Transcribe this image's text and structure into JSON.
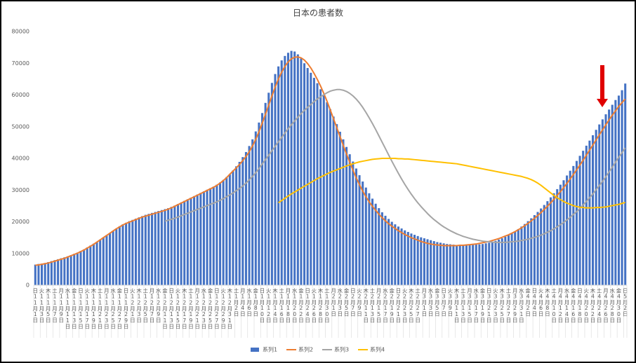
{
  "chart_data": {
    "type": "bar",
    "title": "日本の患者数",
    "categories": [
      "日11月1日",
      null,
      "火11月3日",
      null,
      "木11月5日",
      null,
      "土11月7日",
      null,
      "月11月9日",
      null,
      "水11月11日",
      null,
      "金11月13日",
      null,
      "日11月15日",
      null,
      "火11月17日",
      null,
      "木11月19日",
      null,
      "土11月21日",
      null,
      "月11月23日",
      null,
      "水11月25日",
      null,
      "金11月27日",
      null,
      "日11月29日",
      null,
      "火12月1日",
      null,
      "木12月3日",
      null,
      "土12月5日",
      null,
      "月12月7日",
      null,
      "水12月9日",
      null,
      "金12月11日",
      null,
      "日12月13日",
      null,
      "火12月15日",
      null,
      "木12月17日",
      null,
      "土12月19日",
      null,
      "月12月21日",
      null,
      "水12月23日",
      null,
      "金12月25日",
      null,
      "日12月27日",
      null,
      "火12月29日",
      null,
      "木12月31日",
      null,
      "土1月2日",
      null,
      "月1月4日",
      null,
      "水1月6日",
      null,
      "金1月8日",
      null,
      "日1月10日",
      null,
      "火1月12日",
      null,
      "木1月14日",
      null,
      "土1月16日",
      null,
      "月1月18日",
      null,
      "水1月20日",
      null,
      "金1月22日",
      null,
      "日1月24日",
      null,
      "火1月26日",
      null,
      "木1月28日",
      null,
      "土1月30日",
      null,
      "月2月1日",
      null,
      "水2月3日",
      null,
      "金2月5日",
      null,
      "日2月7日",
      null,
      "火2月9日",
      null,
      "木2月11日",
      null,
      "土2月13日",
      null,
      "月2月15日",
      null,
      "水2月17日",
      null,
      "金2月19日",
      null,
      "日2月21日",
      null,
      "火2月23日",
      null,
      "木2月25日",
      null,
      "土2月27日",
      null,
      "月3月1日",
      null,
      "水3月3日",
      null,
      "金3月5日",
      null,
      "日3月7日",
      null,
      "火3月9日",
      null,
      "木3月11日",
      null,
      "土3月13日",
      null,
      "月3月15日",
      null,
      "水3月17日",
      null,
      "金3月19日",
      null,
      "日3月21日",
      null,
      "火3月23日",
      null,
      "木3月25日",
      null,
      "土3月27日",
      null,
      "月3月29日",
      null,
      "水3月31日",
      null,
      "金4月2日",
      null,
      "日4月4日",
      null,
      "火4月6日",
      null,
      "木4月8日",
      null,
      "土4月10日",
      null,
      "月4月12日",
      null,
      "水4月14日",
      null,
      "金4月16日",
      null,
      "日4月18日",
      null,
      "火4月20日",
      null,
      "木4月22日",
      null,
      "土4月24日",
      null,
      "月4月26日",
      null,
      "水4月28日",
      null,
      "金4月30日",
      null,
      "日5月2日"
    ],
    "series": [
      {
        "name": "系列1",
        "type": "bar",
        "color": "#4472c4",
        "values": [
          6500,
          6700,
          6800,
          7000,
          7300,
          7600,
          7900,
          8200,
          8500,
          8800,
          9100,
          9500,
          9900,
          10300,
          10800,
          11300,
          11900,
          12500,
          13100,
          13700,
          14400,
          15100,
          15800,
          16500,
          17200,
          17900,
          18600,
          19200,
          19700,
          20200,
          20600,
          21000,
          21400,
          21800,
          22200,
          22500,
          22800,
          23100,
          23400,
          23700,
          24000,
          24300,
          24700,
          25100,
          25600,
          26100,
          26600,
          27100,
          27600,
          28100,
          28600,
          29100,
          29600,
          30100,
          30600,
          31100,
          31700,
          32400,
          33200,
          34100,
          35000,
          36200,
          37500,
          38900,
          40400,
          42000,
          43900,
          46000,
          48500,
          51300,
          54300,
          57500,
          60700,
          63800,
          66600,
          69000,
          70900,
          72300,
          73300,
          73900,
          73700,
          72800,
          71500,
          70000,
          68500,
          67000,
          65400,
          63700,
          61800,
          59800,
          57700,
          55500,
          53200,
          50800,
          48400,
          46000,
          43600,
          41300,
          39000,
          36800,
          34700,
          32700,
          30800,
          29000,
          27300,
          25700,
          24300,
          23000,
          21900,
          20900,
          20000,
          19200,
          18500,
          17900,
          17300,
          16800,
          16300,
          15900,
          15500,
          15100,
          14800,
          14500,
          14200,
          13900,
          13600,
          13400,
          13200,
          13000,
          12900,
          12800,
          12700,
          12600,
          12600,
          12600,
          12600,
          12700,
          12800,
          12900,
          13000,
          13200,
          13400,
          13700,
          14000,
          14400,
          14800,
          15300,
          15800,
          16400,
          17000,
          17700,
          18500,
          19300,
          20200,
          21100,
          22100,
          23100,
          24200,
          25300,
          26500,
          27700,
          29000,
          30300,
          31700,
          33100,
          34600,
          36100,
          37600,
          39200,
          40800,
          42400,
          44000,
          45600,
          47300,
          49000,
          50700,
          52300,
          53900,
          55400,
          56900,
          58400,
          59800,
          61500,
          63600
        ]
      },
      {
        "name": "系列2",
        "type": "line",
        "color": "#ed7d31",
        "values": [
          6300,
          6400,
          6600,
          6800,
          7000,
          7300,
          7600,
          7900,
          8200,
          8500,
          8900,
          9300,
          9700,
          10100,
          10600,
          11100,
          11700,
          12300,
          12900,
          13600,
          14300,
          15000,
          15700,
          16400,
          17100,
          17800,
          18400,
          19000,
          19500,
          19900,
          20300,
          20700,
          21100,
          21500,
          21800,
          22100,
          22400,
          22700,
          23000,
          23300,
          23600,
          24000,
          24400,
          24900,
          25400,
          25900,
          26400,
          26900,
          27400,
          27900,
          28400,
          28900,
          29400,
          29900,
          30400,
          30900,
          31500,
          32200,
          33000,
          33900,
          35000,
          36000,
          37000,
          38100,
          39300,
          40600,
          42100,
          43900,
          46000,
          48400,
          51100,
          53900,
          56800,
          59700,
          62500,
          65000,
          67200,
          69000,
          70400,
          71400,
          71900,
          72000,
          71700,
          71000,
          69900,
          68500,
          66800,
          64900,
          62800,
          60500,
          58000,
          55300,
          52500,
          49700,
          46900,
          44100,
          41400,
          38800,
          36300,
          33900,
          31700,
          29700,
          27900,
          26300,
          24900,
          23600,
          22400,
          21300,
          20300,
          19400,
          18600,
          17900,
          17200,
          16600,
          16000,
          15500,
          15000,
          14600,
          14200,
          13800,
          13500,
          13200,
          13000,
          12800,
          12700,
          12600,
          12500,
          12500,
          12500,
          12500,
          12500,
          12600,
          12600,
          12700,
          12800,
          12900,
          13000,
          13200,
          13400,
          13600,
          13800,
          14100,
          14400,
          14700,
          15100,
          15500,
          15900,
          16400,
          16900,
          17500,
          18100,
          18800,
          19500,
          20300,
          21100,
          22000,
          22900,
          23900,
          24900,
          26000,
          27100,
          28300,
          29500,
          30800,
          32100,
          33500,
          34900,
          36400,
          37900,
          39400,
          41000,
          42600,
          44200,
          45800,
          47400,
          49000,
          50600,
          52100,
          53600,
          55000,
          56400,
          57600,
          58700
        ]
      },
      {
        "name": "系列3",
        "type": "line",
        "color": "#a5a5a5",
        "values": [
          null,
          null,
          null,
          null,
          null,
          null,
          null,
          null,
          null,
          null,
          null,
          null,
          null,
          null,
          null,
          null,
          null,
          null,
          null,
          null,
          null,
          null,
          null,
          null,
          null,
          null,
          null,
          null,
          null,
          null,
          null,
          null,
          null,
          null,
          null,
          null,
          null,
          null,
          null,
          null,
          20200,
          20500,
          20800,
          21100,
          21500,
          21900,
          22300,
          22700,
          23100,
          23500,
          23900,
          24300,
          24700,
          25100,
          25500,
          25900,
          26300,
          26800,
          27300,
          27900,
          28500,
          29100,
          29800,
          30500,
          31300,
          32200,
          33200,
          34300,
          35500,
          36800,
          38200,
          39600,
          41000,
          42400,
          43800,
          45200,
          46600,
          48000,
          49300,
          50600,
          51800,
          53000,
          54100,
          55100,
          56100,
          57000,
          57900,
          58700,
          59400,
          60100,
          60700,
          61200,
          61500,
          61700,
          61700,
          61500,
          61100,
          60500,
          59700,
          58700,
          57500,
          56100,
          54500,
          52800,
          51000,
          49100,
          47100,
          45100,
          43100,
          41100,
          39100,
          37200,
          35300,
          33500,
          31800,
          30200,
          28700,
          27300,
          26000,
          24800,
          23700,
          22600,
          21600,
          20700,
          19900,
          19100,
          18400,
          17800,
          17200,
          16700,
          16200,
          15800,
          15400,
          15100,
          14800,
          14500,
          14300,
          14100,
          13900,
          13800,
          13700,
          13600,
          13500,
          13500,
          13500,
          13500,
          13600,
          13700,
          13800,
          13900,
          14100,
          14300,
          14500,
          14800,
          15100,
          15400,
          15800,
          16200,
          16700,
          17200,
          17800,
          18400,
          19100,
          19800,
          20600,
          21400,
          22300,
          23200,
          24200,
          25300,
          26400,
          27600,
          28800,
          30100,
          31400,
          32800,
          34200,
          35700,
          37200,
          38800,
          40400,
          41800,
          43300
        ]
      },
      {
        "name": "系列4",
        "type": "line",
        "color": "#ffc000",
        "values": [
          null,
          null,
          null,
          null,
          null,
          null,
          null,
          null,
          null,
          null,
          null,
          null,
          null,
          null,
          null,
          null,
          null,
          null,
          null,
          null,
          null,
          null,
          null,
          null,
          null,
          null,
          null,
          null,
          null,
          null,
          null,
          null,
          null,
          null,
          null,
          null,
          null,
          null,
          null,
          null,
          null,
          null,
          null,
          null,
          null,
          null,
          null,
          null,
          null,
          null,
          null,
          null,
          null,
          null,
          null,
          null,
          null,
          null,
          null,
          null,
          null,
          null,
          null,
          null,
          null,
          null,
          null,
          null,
          null,
          null,
          null,
          null,
          null,
          null,
          null,
          26000,
          26700,
          27400,
          28100,
          28800,
          29400,
          30000,
          30600,
          31200,
          31800,
          32400,
          33000,
          33600,
          34100,
          34600,
          35100,
          35600,
          36000,
          36400,
          36800,
          37200,
          37600,
          38000,
          38300,
          38600,
          38900,
          39100,
          39300,
          39500,
          39700,
          39800,
          39900,
          40000,
          40000,
          40000,
          40000,
          40000,
          39900,
          39900,
          39800,
          39800,
          39700,
          39600,
          39500,
          39400,
          39300,
          39200,
          39100,
          39000,
          38900,
          38800,
          38700,
          38600,
          38500,
          38400,
          38300,
          38100,
          37900,
          37700,
          37500,
          37300,
          37100,
          36900,
          36700,
          36500,
          36300,
          36100,
          35900,
          35700,
          35500,
          35300,
          35100,
          34900,
          34700,
          34500,
          34300,
          34000,
          33700,
          33300,
          32800,
          32200,
          31500,
          30700,
          29900,
          29100,
          28300,
          27600,
          27000,
          26400,
          25900,
          25500,
          25100,
          24800,
          24600,
          24500,
          24400,
          24400,
          24400,
          24500,
          24500,
          24600,
          24700,
          24900,
          25100,
          25300,
          25500,
          25800,
          26100
        ]
      }
    ],
    "ylim": [
      0,
      80000
    ],
    "yticks": [
      0,
      10000,
      20000,
      30000,
      40000,
      50000,
      60000,
      70000,
      80000
    ],
    "grid": false
  }
}
